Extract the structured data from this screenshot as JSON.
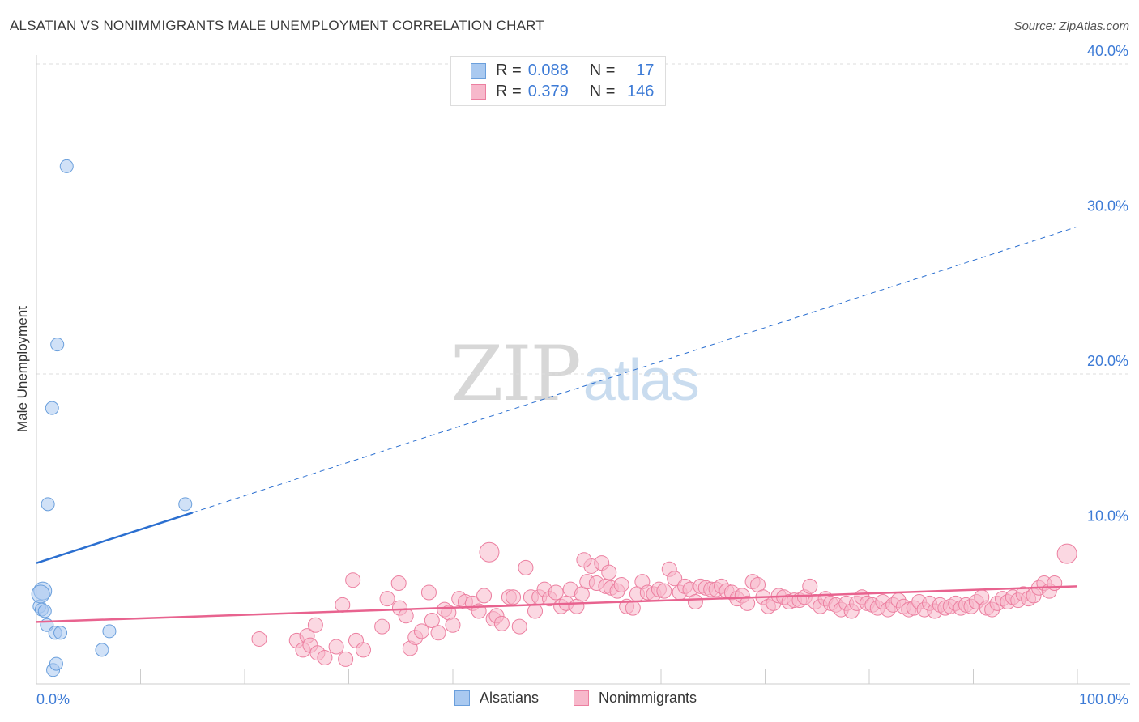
{
  "header": {
    "title": "ALSATIAN VS NONIMMIGRANTS MALE UNEMPLOYMENT CORRELATION CHART",
    "source": "Source: ZipAtlas.com"
  },
  "watermark": {
    "zip": "ZIP",
    "atlas": "atlas"
  },
  "legend_top": {
    "rows": [
      {
        "r_label": "R =",
        "r_value": "0.088",
        "n_label": "N =",
        "n_value": "17",
        "color": "#a9c9f0"
      },
      {
        "r_label": "R =",
        "r_value": "0.379",
        "n_label": "N =",
        "n_value": "146",
        "color": "#f7b8cb"
      }
    ]
  },
  "legend_bottom": {
    "items": [
      {
        "label": "Alsatians",
        "color": "#a9c9f0"
      },
      {
        "label": "Nonimmigrants",
        "color": "#f7b8cb"
      }
    ]
  },
  "chart_data": {
    "type": "scatter",
    "title": "ALSATIAN VS NONIMMIGRANTS MALE UNEMPLOYMENT CORRELATION CHART",
    "xlabel": "",
    "ylabel": "Male Unemployment",
    "xlim": [
      0,
      100
    ],
    "ylim": [
      0,
      40
    ],
    "x_tick_labels": {
      "min": "0.0%",
      "max": "100.0%"
    },
    "y_ticks": [
      {
        "value": 10,
        "label": "10.0%"
      },
      {
        "value": 20,
        "label": "20.0%"
      },
      {
        "value": 30,
        "label": "30.0%"
      },
      {
        "value": 40,
        "label": "40.0%"
      }
    ],
    "grid": true,
    "series": [
      {
        "name": "Alsatians",
        "color": "#a9c9f0",
        "stroke": "#6a9fdc",
        "trend_color": "#2b6fd0",
        "trend": {
          "x0": 0,
          "y0": 7.8,
          "x1": 100,
          "y1": 29.5,
          "solid_until_x": 15
        },
        "points": [
          [
            0.3,
            5.0
          ],
          [
            0.6,
            6.0
          ],
          [
            0.4,
            5.8
          ],
          [
            0.5,
            4.8
          ],
          [
            0.8,
            4.7
          ],
          [
            1.0,
            3.8
          ],
          [
            1.1,
            11.6
          ],
          [
            1.5,
            17.8
          ],
          [
            1.8,
            3.3
          ],
          [
            2.0,
            21.9
          ],
          [
            2.3,
            3.3
          ],
          [
            2.9,
            33.4
          ],
          [
            1.6,
            0.9
          ],
          [
            1.9,
            1.3
          ],
          [
            6.3,
            2.2
          ],
          [
            7.0,
            3.4
          ],
          [
            14.3,
            11.6
          ]
        ]
      },
      {
        "name": "Nonimmigrants",
        "color": "#f7b8cb",
        "stroke": "#ec7fa0",
        "trend_color": "#e8638f",
        "trend": {
          "x0": 0,
          "y0": 4.0,
          "x1": 100,
          "y1": 6.3
        },
        "points": [
          [
            21.4,
            2.9
          ],
          [
            25.0,
            2.8
          ],
          [
            25.6,
            2.2
          ],
          [
            26.0,
            3.1
          ],
          [
            26.3,
            2.5
          ],
          [
            26.8,
            3.8
          ],
          [
            27.0,
            2.0
          ],
          [
            27.7,
            1.7
          ],
          [
            28.8,
            2.4
          ],
          [
            29.4,
            5.1
          ],
          [
            29.7,
            1.6
          ],
          [
            30.4,
            6.7
          ],
          [
            30.7,
            2.8
          ],
          [
            31.4,
            2.2
          ],
          [
            33.2,
            3.7
          ],
          [
            33.7,
            5.5
          ],
          [
            34.8,
            6.5
          ],
          [
            34.9,
            4.9
          ],
          [
            35.5,
            4.4
          ],
          [
            35.9,
            2.3
          ],
          [
            36.4,
            3.0
          ],
          [
            37.0,
            3.4
          ],
          [
            37.7,
            5.9
          ],
          [
            38.0,
            4.1
          ],
          [
            38.6,
            3.3
          ],
          [
            39.2,
            4.8
          ],
          [
            39.6,
            4.6
          ],
          [
            40.0,
            3.8
          ],
          [
            40.6,
            5.5
          ],
          [
            41.2,
            5.3
          ],
          [
            41.9,
            5.2
          ],
          [
            42.5,
            4.7
          ],
          [
            43.0,
            5.7
          ],
          [
            43.5,
            8.5
          ],
          [
            43.9,
            4.2
          ],
          [
            44.2,
            4.4
          ],
          [
            44.7,
            3.9
          ],
          [
            45.4,
            5.6
          ],
          [
            45.8,
            5.6
          ],
          [
            46.4,
            3.7
          ],
          [
            47.0,
            7.5
          ],
          [
            47.5,
            5.6
          ],
          [
            47.9,
            4.7
          ],
          [
            48.3,
            5.6
          ],
          [
            48.8,
            6.1
          ],
          [
            49.3,
            5.5
          ],
          [
            49.9,
            5.9
          ],
          [
            50.4,
            5.0
          ],
          [
            50.9,
            5.2
          ],
          [
            51.3,
            6.1
          ],
          [
            51.9,
            5.0
          ],
          [
            52.4,
            5.8
          ],
          [
            52.9,
            6.6
          ],
          [
            53.3,
            7.6
          ],
          [
            53.8,
            6.5
          ],
          [
            54.3,
            7.8
          ],
          [
            54.7,
            6.3
          ],
          [
            55.2,
            6.2
          ],
          [
            55.8,
            6.0
          ],
          [
            56.2,
            6.4
          ],
          [
            56.7,
            5.0
          ],
          [
            57.3,
            4.9
          ],
          [
            57.7,
            5.8
          ],
          [
            58.2,
            6.6
          ],
          [
            58.7,
            5.9
          ],
          [
            59.3,
            5.8
          ],
          [
            59.8,
            6.1
          ],
          [
            60.3,
            6.0
          ],
          [
            60.8,
            7.4
          ],
          [
            61.3,
            6.8
          ],
          [
            61.8,
            5.9
          ],
          [
            62.3,
            6.3
          ],
          [
            62.8,
            6.1
          ],
          [
            63.3,
            5.3
          ],
          [
            63.8,
            6.3
          ],
          [
            64.3,
            6.2
          ],
          [
            64.8,
            6.1
          ],
          [
            65.3,
            6.1
          ],
          [
            65.8,
            6.3
          ],
          [
            66.3,
            6.0
          ],
          [
            66.8,
            5.9
          ],
          [
            67.3,
            5.5
          ],
          [
            67.8,
            5.7
          ],
          [
            68.3,
            5.2
          ],
          [
            68.8,
            6.6
          ],
          [
            69.3,
            6.4
          ],
          [
            69.8,
            5.6
          ],
          [
            70.3,
            5.0
          ],
          [
            70.8,
            5.2
          ],
          [
            71.3,
            5.7
          ],
          [
            71.8,
            5.6
          ],
          [
            72.3,
            5.3
          ],
          [
            72.8,
            5.4
          ],
          [
            73.3,
            5.4
          ],
          [
            73.8,
            5.6
          ],
          [
            74.3,
            6.3
          ],
          [
            74.8,
            5.3
          ],
          [
            75.3,
            5.0
          ],
          [
            75.8,
            5.5
          ],
          [
            76.3,
            5.2
          ],
          [
            76.8,
            5.1
          ],
          [
            77.3,
            4.8
          ],
          [
            77.8,
            5.2
          ],
          [
            78.3,
            4.7
          ],
          [
            78.8,
            5.2
          ],
          [
            79.3,
            5.6
          ],
          [
            79.8,
            5.2
          ],
          [
            80.3,
            5.1
          ],
          [
            80.8,
            4.9
          ],
          [
            81.3,
            5.3
          ],
          [
            81.8,
            4.8
          ],
          [
            82.3,
            5.1
          ],
          [
            82.8,
            5.4
          ],
          [
            83.3,
            5.0
          ],
          [
            83.8,
            4.8
          ],
          [
            84.3,
            4.9
          ],
          [
            84.8,
            5.3
          ],
          [
            85.3,
            4.8
          ],
          [
            85.8,
            5.2
          ],
          [
            86.3,
            4.7
          ],
          [
            86.8,
            5.1
          ],
          [
            87.3,
            4.9
          ],
          [
            87.8,
            5.0
          ],
          [
            88.3,
            5.2
          ],
          [
            88.8,
            4.9
          ],
          [
            89.3,
            5.1
          ],
          [
            89.8,
            5.0
          ],
          [
            90.3,
            5.3
          ],
          [
            90.8,
            5.6
          ],
          [
            91.3,
            4.9
          ],
          [
            91.8,
            4.8
          ],
          [
            92.3,
            5.2
          ],
          [
            92.8,
            5.5
          ],
          [
            93.3,
            5.3
          ],
          [
            93.8,
            5.6
          ],
          [
            94.3,
            5.4
          ],
          [
            94.8,
            5.8
          ],
          [
            95.3,
            5.5
          ],
          [
            95.8,
            5.7
          ],
          [
            96.3,
            6.2
          ],
          [
            96.8,
            6.5
          ],
          [
            97.3,
            6.0
          ],
          [
            97.8,
            6.5
          ],
          [
            99.0,
            8.4
          ],
          [
            52.6,
            8.0
          ],
          [
            55.0,
            7.2
          ]
        ]
      }
    ]
  }
}
